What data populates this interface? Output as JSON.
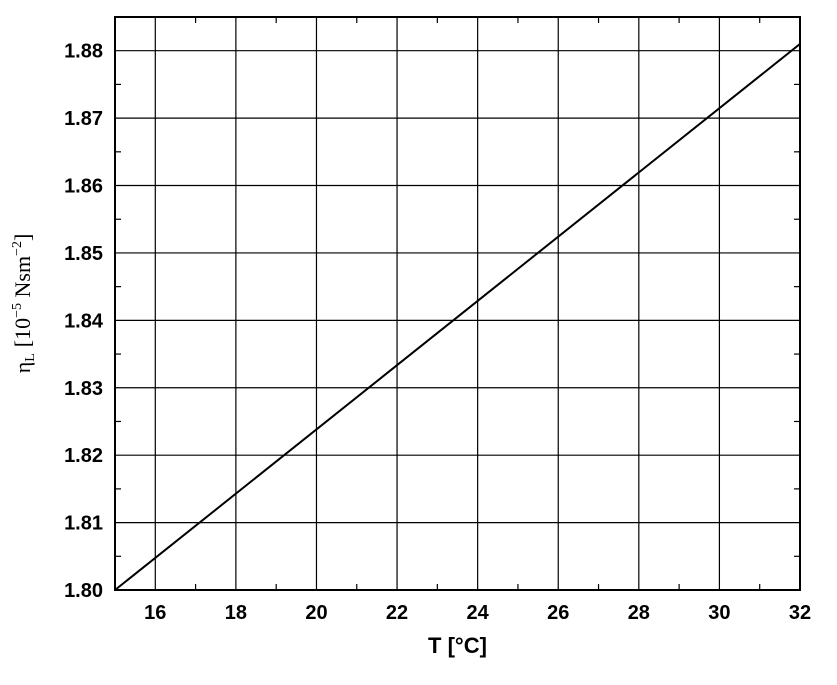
{
  "chart_data": {
    "type": "line",
    "xlabel": "T [°C]",
    "ylabel": {
      "symbol": "η",
      "subscript": "L",
      "unit_prefix": "[10",
      "exp1": "−5",
      "unit_mid": " Nsm",
      "exp2": "−2",
      "unit_suffix": "]"
    },
    "xlim": [
      15,
      32
    ],
    "ylim": [
      1.8,
      1.885
    ],
    "x_ticks": [
      16,
      18,
      20,
      22,
      24,
      26,
      28,
      30,
      32
    ],
    "y_ticks": [
      1.8,
      1.81,
      1.82,
      1.83,
      1.84,
      1.85,
      1.86,
      1.87,
      1.88
    ],
    "y_tick_labels": [
      "1.80",
      "1.81",
      "1.82",
      "1.83",
      "1.84",
      "1.85",
      "1.86",
      "1.87",
      "1.88"
    ],
    "grid": true,
    "series": [
      {
        "x": [
          15,
          32
        ],
        "y": [
          1.8,
          1.881
        ],
        "color": "#000000"
      }
    ]
  }
}
